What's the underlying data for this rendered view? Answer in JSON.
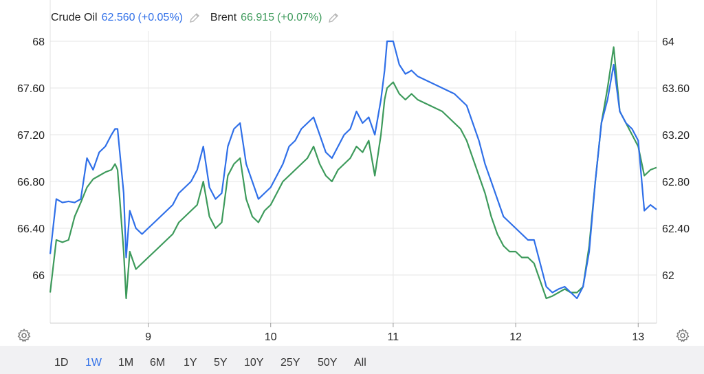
{
  "legend": {
    "crude_name": "Crude Oil",
    "crude_value": "62.560",
    "crude_change": "(+0.05%)",
    "brent_name": "Brent",
    "brent_value": "66.915",
    "brent_change": "(+0.07%)",
    "edit_icon": "pencil-icon"
  },
  "ranges": {
    "items": [
      "1D",
      "1W",
      "1M",
      "6M",
      "1Y",
      "5Y",
      "10Y",
      "25Y",
      "50Y",
      "All"
    ],
    "active": "1W"
  },
  "colors": {
    "crude": "#2f6fe8",
    "brent": "#3d9a5b",
    "grid": "#e6e6e6",
    "bottom_bar": "#f1f1f3"
  },
  "settings_icon": "gear-icon",
  "chart_data": {
    "type": "line",
    "x_ticks": [
      "9",
      "10",
      "11",
      "12",
      "13"
    ],
    "left_axis": {
      "ticks": [
        "66",
        "66.40",
        "66.80",
        "67.20",
        "67.60",
        "68"
      ],
      "ylim": [
        65.6,
        68.1
      ],
      "series": "Brent"
    },
    "right_axis": {
      "ticks": [
        "62",
        "62.40",
        "62.80",
        "63.20",
        "63.60",
        "64"
      ],
      "ylim": [
        61.6,
        64.1
      ],
      "series": "Crude Oil"
    },
    "grid": true,
    "x": [
      8.2,
      8.25,
      8.3,
      8.35,
      8.4,
      8.45,
      8.5,
      8.55,
      8.6,
      8.65,
      8.7,
      8.73,
      8.75,
      8.8,
      8.82,
      8.85,
      8.9,
      8.95,
      9.0,
      9.05,
      9.1,
      9.15,
      9.2,
      9.25,
      9.3,
      9.35,
      9.4,
      9.45,
      9.5,
      9.55,
      9.6,
      9.65,
      9.7,
      9.75,
      9.8,
      9.85,
      9.9,
      9.95,
      10.0,
      10.05,
      10.1,
      10.15,
      10.2,
      10.25,
      10.3,
      10.35,
      10.4,
      10.45,
      10.5,
      10.55,
      10.6,
      10.65,
      10.7,
      10.75,
      10.8,
      10.85,
      10.9,
      10.93,
      10.95,
      11.0,
      11.05,
      11.1,
      11.15,
      11.2,
      11.3,
      11.4,
      11.5,
      11.55,
      11.6,
      11.65,
      11.7,
      11.75,
      11.8,
      11.85,
      11.9,
      11.95,
      12.0,
      12.05,
      12.1,
      12.15,
      12.2,
      12.25,
      12.3,
      12.35,
      12.4,
      12.45,
      12.5,
      12.55,
      12.6,
      12.65,
      12.7,
      12.75,
      12.8,
      12.85,
      12.9,
      12.95,
      13.0,
      13.05,
      13.1,
      13.15
    ],
    "series": [
      {
        "name": "Crude Oil",
        "axis": "right",
        "values": [
          62.18,
          62.65,
          62.62,
          62.63,
          62.62,
          62.65,
          63.0,
          62.9,
          63.05,
          63.1,
          63.2,
          63.25,
          63.25,
          62.7,
          62.15,
          62.55,
          62.4,
          62.35,
          62.4,
          62.45,
          62.5,
          62.55,
          62.6,
          62.7,
          62.75,
          62.8,
          62.9,
          63.1,
          62.75,
          62.65,
          62.7,
          63.1,
          63.25,
          63.3,
          62.95,
          62.8,
          62.65,
          62.7,
          62.75,
          62.85,
          62.95,
          63.1,
          63.15,
          63.25,
          63.3,
          63.35,
          63.2,
          63.05,
          63.0,
          63.1,
          63.2,
          63.25,
          63.4,
          63.3,
          63.35,
          63.2,
          63.5,
          63.75,
          64.0,
          64.0,
          63.8,
          63.72,
          63.75,
          63.7,
          63.65,
          63.6,
          63.55,
          63.5,
          63.45,
          63.3,
          63.15,
          62.95,
          62.8,
          62.65,
          62.5,
          62.45,
          62.4,
          62.35,
          62.3,
          62.3,
          62.1,
          61.9,
          61.85,
          61.88,
          61.9,
          61.85,
          61.8,
          61.9,
          62.2,
          62.8,
          63.3,
          63.5,
          63.8,
          63.4,
          63.3,
          63.25,
          63.15,
          62.55,
          62.6,
          62.56
        ]
      },
      {
        "name": "Brent",
        "axis": "left",
        "values": [
          65.85,
          66.3,
          66.28,
          66.3,
          66.5,
          66.62,
          66.75,
          66.82,
          66.85,
          66.88,
          66.9,
          66.95,
          66.9,
          66.2,
          65.8,
          66.2,
          66.05,
          66.1,
          66.15,
          66.2,
          66.25,
          66.3,
          66.35,
          66.45,
          66.5,
          66.55,
          66.6,
          66.8,
          66.5,
          66.4,
          66.45,
          66.85,
          66.95,
          67.0,
          66.65,
          66.5,
          66.45,
          66.55,
          66.6,
          66.7,
          66.8,
          66.85,
          66.9,
          66.95,
          67.0,
          67.1,
          66.95,
          66.85,
          66.8,
          66.9,
          66.95,
          67.0,
          67.1,
          67.05,
          67.15,
          66.85,
          67.2,
          67.5,
          67.6,
          67.65,
          67.55,
          67.5,
          67.55,
          67.5,
          67.45,
          67.4,
          67.3,
          67.25,
          67.15,
          67.0,
          66.85,
          66.7,
          66.5,
          66.35,
          66.25,
          66.2,
          66.2,
          66.15,
          66.15,
          66.1,
          65.95,
          65.8,
          65.82,
          65.85,
          65.88,
          65.85,
          65.85,
          65.9,
          66.25,
          66.8,
          67.3,
          67.6,
          67.95,
          67.4,
          67.3,
          67.2,
          67.1,
          66.85,
          66.9,
          66.92
        ]
      }
    ]
  }
}
